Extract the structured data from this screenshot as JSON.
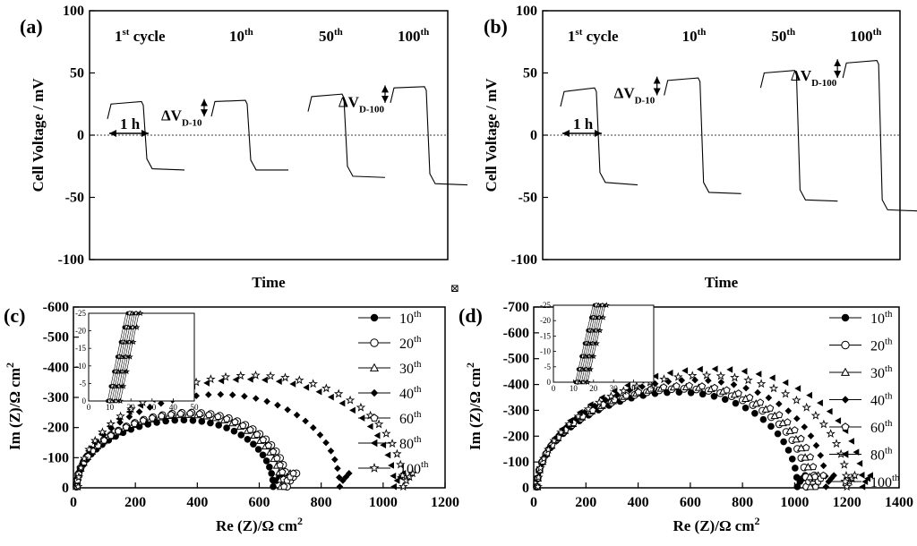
{
  "figure": {
    "center_mark": "⊠"
  },
  "chart_data": [
    {
      "panel": "(a)",
      "type": "line",
      "xlabel": "Time",
      "ylabel": "Cell Voltage / mV",
      "ylim": [
        -100,
        100
      ],
      "yticks": [
        "100",
        "50",
        "0",
        "-50",
        "-100"
      ],
      "x_units": "cycle segment index (no numeric x ticks shown)",
      "cycle_labels": [
        {
          "base": "1",
          "sup": "st",
          "tail": " cycle"
        },
        {
          "base": "10",
          "sup": "th",
          "tail": ""
        },
        {
          "base": "50",
          "sup": "th",
          "tail": ""
        },
        {
          "base": "100",
          "sup": "th",
          "tail": ""
        }
      ],
      "series": [
        {
          "label": "1st cycle",
          "charge_start": 25,
          "charge_end": 27,
          "discharge_start": -27,
          "discharge_end": -28
        },
        {
          "label": "10th",
          "charge_start": 27,
          "charge_end": 28,
          "discharge_start": -28,
          "discharge_end": -28
        },
        {
          "label": "50th",
          "charge_start": 31,
          "charge_end": 33,
          "discharge_start": -33,
          "discharge_end": -34
        },
        {
          "label": "100th",
          "charge_start": 38,
          "charge_end": 39,
          "discharge_start": -39,
          "discharge_end": -40
        }
      ],
      "annotations": {
        "duration": "1 h",
        "delta1": "D-10",
        "delta2": "D-100",
        "delta_prefix": "ΔV"
      }
    },
    {
      "panel": "(b)",
      "type": "line",
      "xlabel": "Time",
      "ylabel": "Cell Voltage / mV",
      "ylim": [
        -100,
        100
      ],
      "yticks": [
        "100",
        "50",
        "0",
        "-50",
        "-100"
      ],
      "cycle_labels": [
        {
          "base": "1",
          "sup": "st",
          "tail": " cycle"
        },
        {
          "base": "10",
          "sup": "th",
          "tail": ""
        },
        {
          "base": "50",
          "sup": "th",
          "tail": ""
        },
        {
          "base": "100",
          "sup": "th",
          "tail": ""
        }
      ],
      "series": [
        {
          "label": "1st cycle",
          "charge_start": 35,
          "charge_end": 38,
          "discharge_start": -38,
          "discharge_end": -40
        },
        {
          "label": "10th",
          "charge_start": 44,
          "charge_end": 46,
          "discharge_start": -46,
          "discharge_end": -47
        },
        {
          "label": "50th",
          "charge_start": 50,
          "charge_end": 52,
          "discharge_start": -52,
          "discharge_end": -53
        },
        {
          "label": "100th",
          "charge_start": 58,
          "charge_end": 60,
          "discharge_start": -60,
          "discharge_end": -61
        }
      ],
      "annotations": {
        "duration": "1 h",
        "delta1": "D-10",
        "delta2": "D-100",
        "delta_prefix": "ΔV"
      }
    },
    {
      "panel": "(c)",
      "type": "scatter",
      "xlabel": "Re (Z)/Ω cm²",
      "ylabel": "Im (Z)/Ω cm²",
      "xlim": [
        0,
        1200
      ],
      "ylim": [
        0,
        -600
      ],
      "xticks": [
        "0",
        "200",
        "400",
        "600",
        "800",
        "1000",
        "1200"
      ],
      "yticks": [
        "-600",
        "-500",
        "-400",
        "-300",
        "-200",
        "-100",
        "0"
      ],
      "series": [
        {
          "name": "10",
          "sup": "th",
          "marker": "circle-filled",
          "r0": 10,
          "r1": 645,
          "peak": 220
        },
        {
          "name": "20",
          "sup": "th",
          "marker": "circle-open",
          "r0": 10,
          "r1": 690,
          "peak": 245
        },
        {
          "name": "30",
          "sup": "th",
          "marker": "triangle-open",
          "r0": 10,
          "r1": 670,
          "peak": 238
        },
        {
          "name": "40",
          "sup": "th",
          "marker": "diamond-filled",
          "r0": 12,
          "r1": 860,
          "peak": 305
        },
        {
          "name": "60",
          "sup": "th",
          "marker": "pentagon-open",
          "r0": 12,
          "r1": 680,
          "peak": 242
        },
        {
          "name": "80",
          "sup": "th",
          "marker": "triangle-left-filled",
          "r0": 14,
          "r1": 1035,
          "peak": 355
        },
        {
          "name": "100",
          "sup": "th",
          "marker": "star-open",
          "r0": 15,
          "r1": 1065,
          "peak": 368
        }
      ],
      "inset": {
        "xlim": [
          0,
          50
        ],
        "ylim": [
          0,
          -25
        ],
        "xticks": [
          "0",
          "10",
          "20",
          "30",
          "40",
          "50"
        ],
        "yticks": [
          "-25",
          "-20",
          "-15",
          "-10",
          "-5",
          "0"
        ],
        "r0": [
          9,
          10,
          11,
          12,
          13,
          14,
          15
        ]
      }
    },
    {
      "panel": "(d)",
      "type": "scatter",
      "xlabel": "Re (Z)/Ω cm²",
      "ylabel": "Im (Z)/Ω cm²",
      "xlim": [
        0,
        1400
      ],
      "ylim": [
        0,
        -700
      ],
      "xticks": [
        "0",
        "200",
        "400",
        "600",
        "800",
        "1000",
        "1200",
        "1400"
      ],
      "yticks": [
        "-700",
        "-600",
        "-500",
        "-400",
        "-300",
        "-200",
        "-100",
        "0"
      ],
      "series": [
        {
          "name": "10",
          "sup": "th",
          "marker": "circle-filled",
          "r0": 12,
          "r1": 1010,
          "peak": 365
        },
        {
          "name": "20",
          "sup": "th",
          "marker": "circle-open",
          "r0": 12,
          "r1": 1045,
          "peak": 378
        },
        {
          "name": "30",
          "sup": "th",
          "marker": "triangle-open",
          "r0": 13,
          "r1": 1060,
          "peak": 385
        },
        {
          "name": "40",
          "sup": "th",
          "marker": "diamond-filled",
          "r0": 14,
          "r1": 1120,
          "peak": 412
        },
        {
          "name": "60",
          "sup": "th",
          "marker": "pentagon-open",
          "r0": 14,
          "r1": 1080,
          "peak": 390
        },
        {
          "name": "80",
          "sup": "th",
          "marker": "triangle-left-filled",
          "r0": 15,
          "r1": 1260,
          "peak": 455
        },
        {
          "name": "100",
          "sup": "th",
          "marker": "star-open",
          "r0": 16,
          "r1": 1200,
          "peak": 430
        }
      ],
      "inset": {
        "xlim": [
          0,
          50
        ],
        "ylim": [
          0,
          -25
        ],
        "xticks": [
          "0",
          "10",
          "20",
          "30",
          "40",
          "50"
        ],
        "yticks": [
          "-25",
          "-20",
          "-15",
          "-10",
          "-5",
          "0"
        ],
        "r0": [
          11,
          12,
          13,
          14,
          15,
          16,
          17
        ]
      }
    }
  ]
}
